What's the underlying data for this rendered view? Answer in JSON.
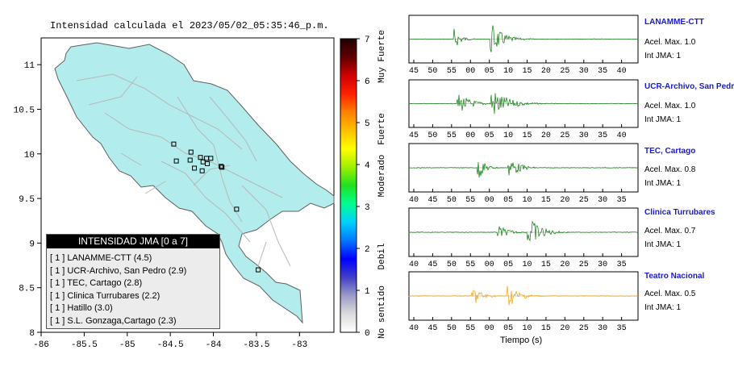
{
  "title": "Intensidad calculada el 2023/05/02_05:35:46_p.m.",
  "map": {
    "x_ticks": [
      "-86",
      "-85.5",
      "-85",
      "-84.5",
      "-84",
      "-83.5",
      "-83"
    ],
    "y_ticks": [
      "11",
      "10.5",
      "10",
      "9.5",
      "9",
      "8.5",
      "8"
    ],
    "xlim": [
      -86,
      -82.6
    ],
    "ylim": [
      8,
      11.3
    ],
    "land_color": "#b2ecec",
    "station_markers": [
      {
        "lon": -84.46,
        "lat": 10.11
      },
      {
        "lon": -84.26,
        "lat": 10.02
      },
      {
        "lon": -84.43,
        "lat": 9.92
      },
      {
        "lon": -84.27,
        "lat": 9.93
      },
      {
        "lon": -84.15,
        "lat": 9.96
      },
      {
        "lon": -84.08,
        "lat": 9.95
      },
      {
        "lon": -84.03,
        "lat": 9.95
      },
      {
        "lon": -84.12,
        "lat": 9.91
      },
      {
        "lon": -84.07,
        "lat": 9.89
      },
      {
        "lon": -84.22,
        "lat": 9.84
      },
      {
        "lon": -84.13,
        "lat": 9.81
      },
      {
        "lon": -83.91,
        "lat": 9.86
      },
      {
        "lon": -83.9,
        "lat": 9.85
      },
      {
        "lon": -83.73,
        "lat": 9.38
      },
      {
        "lon": -83.48,
        "lat": 8.7
      }
    ]
  },
  "colorbar": {
    "ticks": [
      "0",
      "1",
      "2",
      "3",
      "4",
      "5",
      "6",
      "7"
    ],
    "labels": [
      "No sentido",
      "Debil",
      "Moderado",
      "Fuerte",
      "Muy Fuerte"
    ],
    "scale_colors": [
      "#ffffff",
      "#dcdcdc",
      "#9b9bc8",
      "#4040c8",
      "#0000ff",
      "#0078ff",
      "#00d0ff",
      "#00ff90",
      "#20e020",
      "#a0f000",
      "#ffff00",
      "#ffc000",
      "#ff8000",
      "#ff2000",
      "#d00000",
      "#600000",
      "#200000"
    ]
  },
  "legend": {
    "header": "INTENSIDAD JMA [0 a 7]",
    "items": [
      "[ 1 ]  LANAMME-CTT (4.5)",
      "[ 1 ]  UCR-Archivo, San Pedro (2.9)",
      "[ 1 ]  TEC, Cartago (2.8)",
      "[ 1 ]  Clinica Turrubares (2.2)",
      "[ 1 ]  Hatillo (3.0)",
      "[ 1 ]  S.L. Gonzaga,Cartago (2.3)"
    ]
  },
  "waveforms": {
    "xlabel": "Tiempo (s)",
    "traces": [
      {
        "name": "LANAMME-CTT",
        "acel": "Acel. Max. 1.0",
        "jma": "Int JMA: 1",
        "color": "#0b7a0b",
        "ticks": [
          "45",
          "50",
          "55",
          "00",
          "05",
          "10",
          "15",
          "20",
          "25",
          "30",
          "35",
          "40"
        ]
      },
      {
        "name": "UCR-Archivo, San Pedro",
        "acel": "Acel. Max. 1.0",
        "jma": "Int JMA: 1",
        "color": "#0b7a0b",
        "ticks": [
          "45",
          "50",
          "55",
          "00",
          "05",
          "10",
          "15",
          "20",
          "25",
          "30",
          "35",
          "40"
        ]
      },
      {
        "name": "TEC, Cartago",
        "acel": "Acel. Max. 0.8",
        "jma": "Int JMA: 1",
        "color": "#0b7a0b",
        "ticks": [
          "40",
          "45",
          "50",
          "55",
          "00",
          "05",
          "10",
          "15",
          "20",
          "25",
          "30",
          "35"
        ]
      },
      {
        "name": "Clinica Turrubares",
        "acel": "Acel. Max. 0.7",
        "jma": "Int JMA: 1",
        "color": "#0b7a0b",
        "ticks": [
          "40",
          "45",
          "50",
          "55",
          "00",
          "05",
          "10",
          "15",
          "20",
          "25",
          "30",
          "35"
        ]
      },
      {
        "name": "Teatro Nacional",
        "acel": "Acel. Max. 0.5",
        "jma": "Int JMA: 1",
        "color": "#f5a000",
        "ticks": [
          "40",
          "45",
          "50",
          "55",
          "00",
          "05",
          "10",
          "15",
          "20",
          "25",
          "30",
          "35"
        ]
      }
    ]
  },
  "chart_data": [
    {
      "type": "scatter",
      "title": "Intensidad calculada el 2023/05/02_05:35:46_p.m.",
      "xlabel": "",
      "ylabel": "",
      "xlim": [
        -86,
        -82.6
      ],
      "ylim": [
        8,
        11.3
      ],
      "series": [
        {
          "name": "",
          "x": [
            -84.46,
            -84.26,
            -84.43,
            -84.27,
            -84.15,
            -84.08,
            -84.03,
            -84.12,
            -84.07,
            -84.22,
            -84.13,
            -83.91,
            -83.9,
            -83.73,
            -83.48
          ],
          "y": [
            10.11,
            10.02,
            9.92,
            9.93,
            9.96,
            9.95,
            9.95,
            9.91,
            9.89,
            9.84,
            9.81,
            9.86,
            9.85,
            9.38,
            8.7
          ]
        }
      ]
    },
    {
      "type": "line",
      "title": "",
      "xlabel": "Tiempo (s)",
      "ylabel": "",
      "series": [
        {
          "name": "LANAMME-CTT",
          "peaks_at_tick": [
            "55",
            "05"
          ]
        },
        {
          "name": "UCR-Archivo, San Pedro",
          "peaks_at_tick": [
            "55",
            "05"
          ]
        },
        {
          "name": "TEC, Cartago",
          "peaks_at_tick": [
            "55",
            "05"
          ]
        },
        {
          "name": "Clinica Turrubares",
          "peaks_at_tick": [
            "10"
          ]
        },
        {
          "name": "Teatro Nacional",
          "peaks_at_tick": [
            "55",
            "05"
          ]
        }
      ]
    }
  ]
}
